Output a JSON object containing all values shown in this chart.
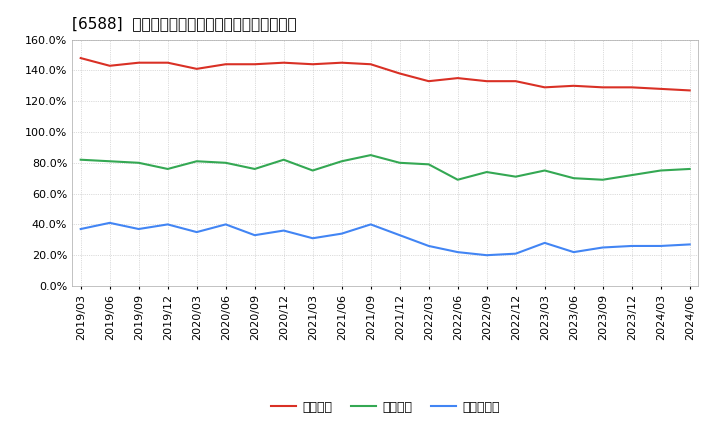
{
  "title": "[6588]  流動比率、当座比率、現預金比率の推移",
  "x_labels": [
    "2019/03",
    "2019/06",
    "2019/09",
    "2019/12",
    "2020/03",
    "2020/06",
    "2020/09",
    "2020/12",
    "2021/03",
    "2021/06",
    "2021/09",
    "2021/12",
    "2022/03",
    "2022/06",
    "2022/09",
    "2022/12",
    "2023/03",
    "2023/06",
    "2023/09",
    "2023/12",
    "2024/03",
    "2024/06"
  ],
  "ryudo": [
    148,
    143,
    145,
    145,
    141,
    144,
    144,
    145,
    144,
    145,
    144,
    138,
    133,
    135,
    133,
    133,
    129,
    130,
    129,
    129,
    128,
    127
  ],
  "toza": [
    82,
    81,
    80,
    76,
    81,
    80,
    76,
    82,
    75,
    81,
    85,
    80,
    79,
    69,
    74,
    71,
    75,
    70,
    69,
    72,
    75,
    76
  ],
  "genyo": [
    37,
    41,
    37,
    40,
    35,
    40,
    33,
    36,
    31,
    34,
    40,
    33,
    26,
    22,
    20,
    21,
    28,
    22,
    25,
    26,
    26,
    27
  ],
  "ryudo_color": "#d93025",
  "toza_color": "#34a853",
  "genyo_color": "#4285f4",
  "bg_color": "#ffffff",
  "plot_bg": "#ffffff",
  "grid_color": "#bbbbbb",
  "ylim": [
    0,
    160
  ],
  "yticks": [
    0,
    20,
    40,
    60,
    80,
    100,
    120,
    140,
    160
  ],
  "legend_labels": [
    "流動比率",
    "当座比率",
    "現預金比率"
  ],
  "title_fontsize": 11,
  "tick_fontsize": 8,
  "legend_fontsize": 9
}
